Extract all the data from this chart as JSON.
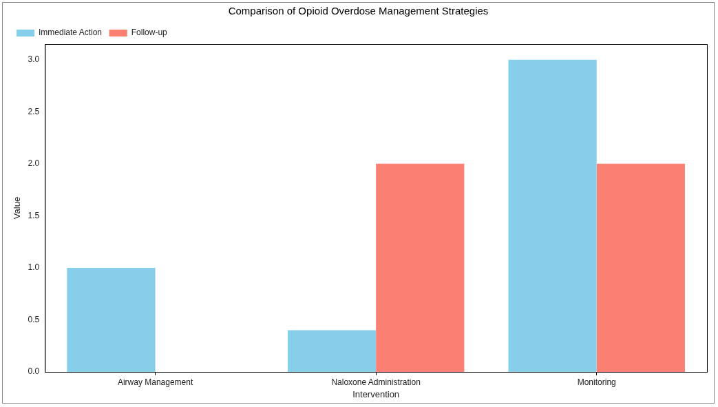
{
  "chart_data": {
    "type": "bar",
    "title": "Comparison of Opioid Overdose Management Strategies",
    "xlabel": "Intervention",
    "ylabel": "Value",
    "categories": [
      "Airway Management",
      "Naloxone Administration",
      "Monitoring"
    ],
    "series": [
      {
        "name": "Immediate Action",
        "color": "#87ceeb",
        "values": [
          1.0,
          0.4,
          3.0
        ]
      },
      {
        "name": "Follow-up",
        "color": "#fa8072",
        "values": [
          0,
          2.0,
          2.0
        ]
      }
    ],
    "ylim": [
      0,
      3.15
    ],
    "yticks": [
      {
        "value": 0,
        "label": "0.0"
      },
      {
        "value": 0.5,
        "label": "0.5"
      },
      {
        "value": 1,
        "label": "1.0"
      },
      {
        "value": 1.5,
        "label": "1.5"
      },
      {
        "value": 2,
        "label": "2.0"
      },
      {
        "value": 2.5,
        "label": "2.5"
      },
      {
        "value": 3,
        "label": "3.0"
      }
    ],
    "grid": false,
    "legend": "top left"
  }
}
